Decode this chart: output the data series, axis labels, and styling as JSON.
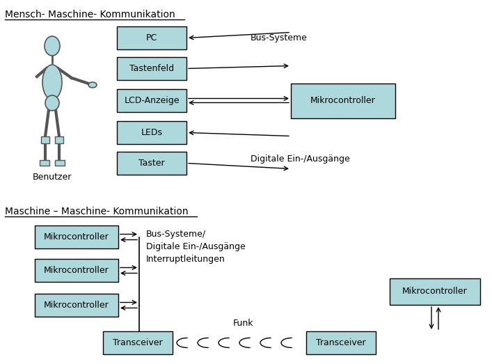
{
  "bg_color": "#ffffff",
  "box_fill": "#add8dc",
  "box_edge": "#000000",
  "section1_label": "Mensch- Maschine- Kommunikation",
  "section2_label": "Maschine – Maschine- Kommunikation",
  "benutzer_label": "Benutzer",
  "bus_systeme_label": "Bus-Systeme",
  "digitale_label": "Digitale Ein-/Ausgänge",
  "bus_systeme2_label": "Bus-Systeme/\nDigitale Ein-/Ausgänge\nInterruptleitungen",
  "funk_label": "Funk",
  "top_boxes": [
    "PC",
    "Tastenfeld",
    "LCD-Anzeige",
    "LEDs",
    "Taster"
  ],
  "mikrocontroller_label": "Mikrocontroller",
  "transceiver_label": "Transceiver",
  "figure_color": "#add8dc",
  "figure_edge": "#555555"
}
